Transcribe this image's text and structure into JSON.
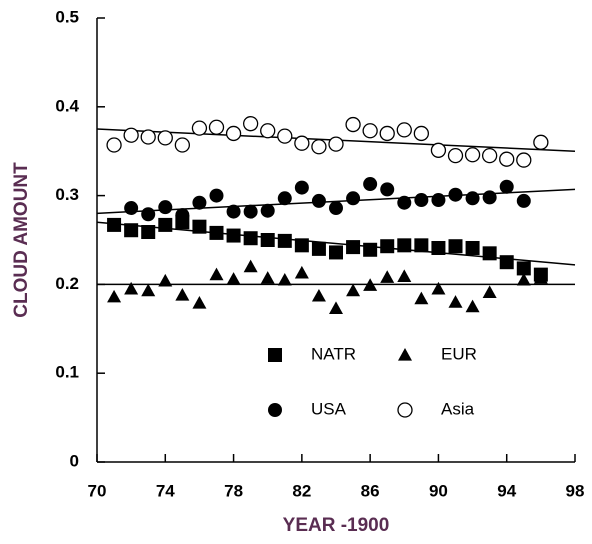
{
  "chart_data": {
    "type": "scatter",
    "x_label": "YEAR -1900",
    "y_label": "CLOUD AMOUNT",
    "x": [
      71,
      72,
      73,
      74,
      75,
      76,
      77,
      78,
      79,
      80,
      81,
      82,
      83,
      84,
      85,
      86,
      87,
      88,
      89,
      90,
      91,
      92,
      93,
      94,
      95,
      96
    ],
    "xlim": [
      70,
      98
    ],
    "xticks": [
      70,
      74,
      78,
      82,
      86,
      90,
      94,
      98
    ],
    "ylim": [
      0,
      0.5
    ],
    "yticks": [
      0,
      0.1,
      0.2,
      0.3,
      0.4,
      0.5
    ],
    "series": [
      {
        "name": "NATR",
        "color": "#000000",
        "marker": "square",
        "values": [
          0.267,
          0.261,
          0.259,
          0.267,
          0.27,
          0.265,
          0.258,
          0.255,
          0.252,
          0.25,
          0.249,
          0.244,
          0.24,
          0.236,
          0.242,
          0.239,
          0.243,
          0.244,
          0.244,
          0.241,
          0.243,
          0.241,
          0.235,
          0.225,
          0.218,
          0.211
        ],
        "trend": [
          0.27,
          0.222
        ]
      },
      {
        "name": "EUR",
        "color": "#000000",
        "marker": "triangle",
        "values": [
          0.186,
          0.195,
          0.193,
          0.204,
          0.188,
          0.179,
          0.211,
          0.206,
          0.22,
          0.207,
          0.205,
          0.213,
          0.187,
          0.173,
          0.193,
          0.199,
          0.208,
          0.209,
          0.184,
          0.195,
          0.18,
          0.175,
          0.191,
          null,
          0.205,
          0.207
        ],
        "trend": [
          0.2,
          0.2
        ]
      },
      {
        "name": "USA",
        "color": "#000000",
        "marker": "circle",
        "values": [
          null,
          0.286,
          0.279,
          0.287,
          0.278,
          0.292,
          0.3,
          0.282,
          0.282,
          0.283,
          0.297,
          0.309,
          0.294,
          0.286,
          0.297,
          0.313,
          0.307,
          0.292,
          0.295,
          0.295,
          0.301,
          0.297,
          0.298,
          0.31,
          0.294,
          null
        ],
        "trend": [
          0.28,
          0.307
        ]
      },
      {
        "name": "Asia",
        "color": "#000000",
        "marker": "open-circle",
        "values": [
          0.357,
          0.368,
          0.366,
          0.365,
          0.357,
          0.376,
          0.377,
          0.37,
          0.381,
          0.373,
          0.367,
          0.359,
          0.355,
          0.358,
          0.38,
          0.373,
          0.37,
          0.374,
          0.37,
          0.351,
          0.345,
          0.346,
          0.345,
          0.341,
          0.34,
          0.36
        ],
        "trend": [
          0.375,
          0.35
        ]
      }
    ]
  }
}
